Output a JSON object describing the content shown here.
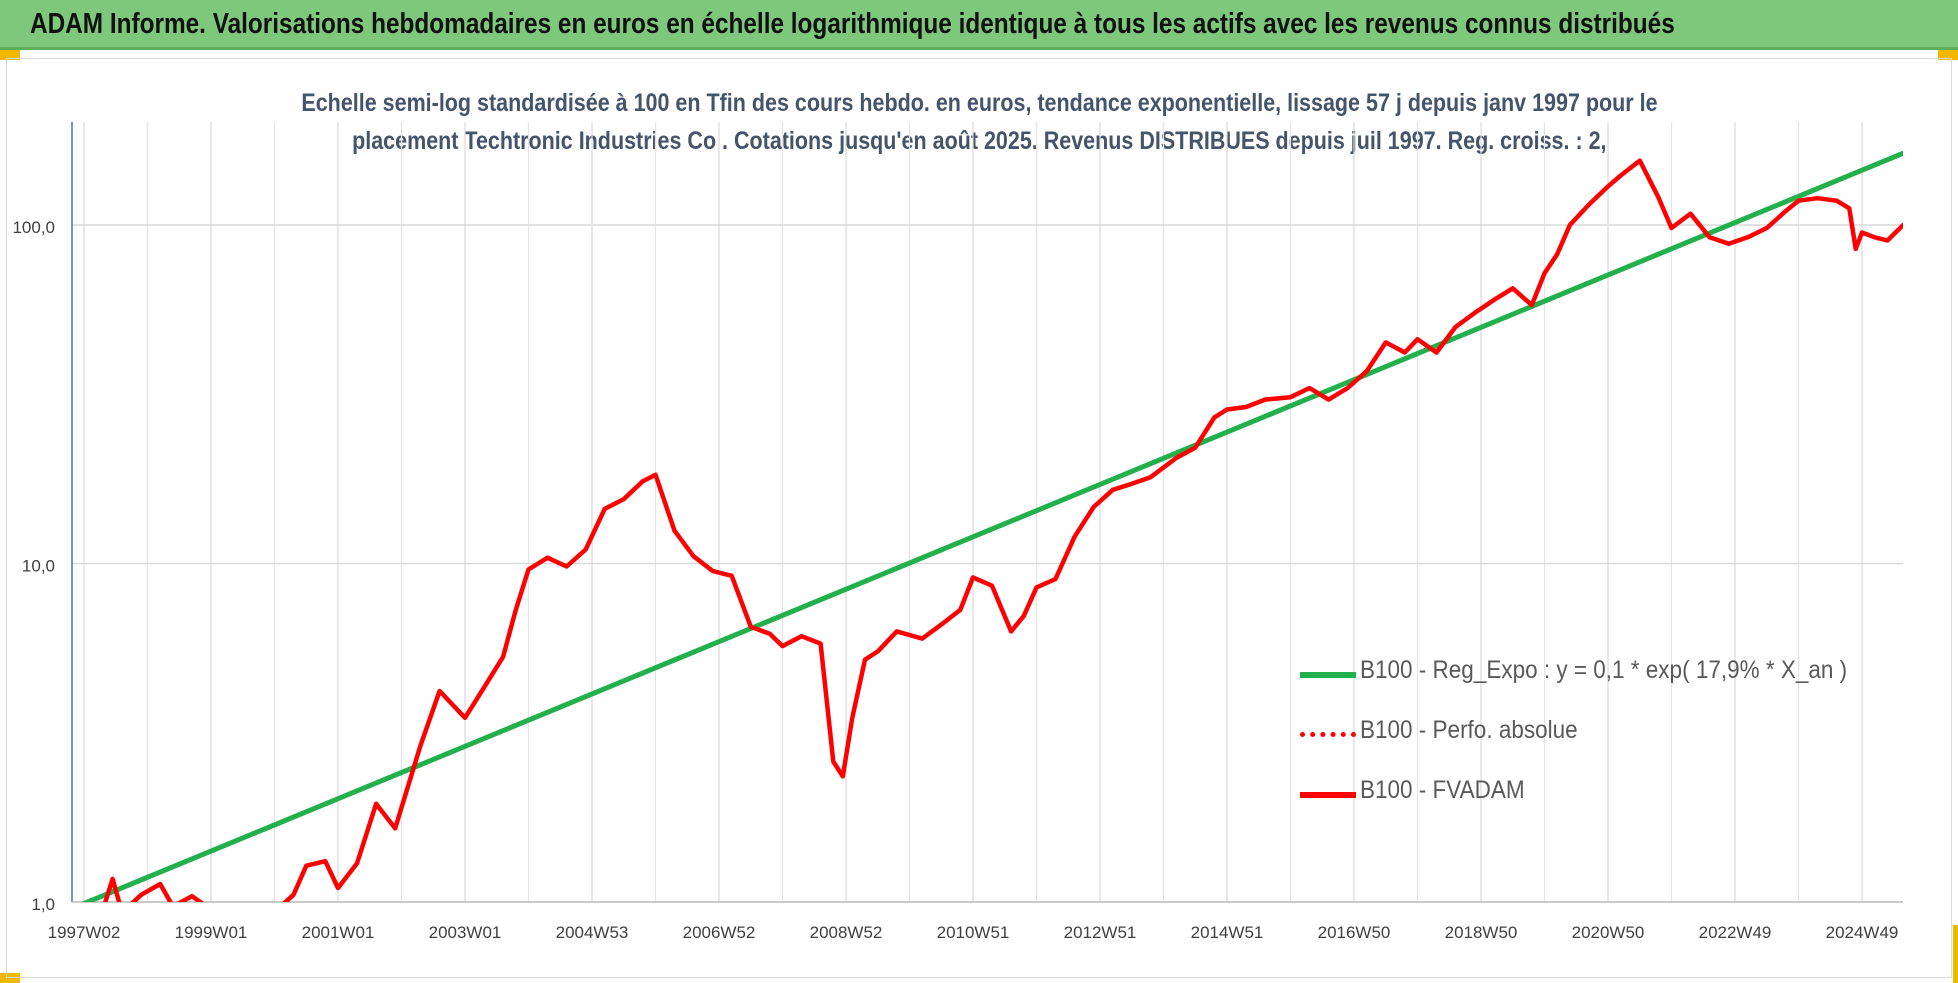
{
  "banner": {
    "title": "ADAM Informe. Valorisations hebdomadaires en euros en échelle logarithmique identique à tous les actifs avec les revenus connus distribués"
  },
  "subtitle": {
    "line1": "Echelle semi-log standardisée à 100 en Tfin des cours hebdo. en euros, tendance exponentielle, lissage 57 j depuis janv 1997 pour le",
    "line2": "placement Techtronic Industries Co . Cotations jusqu'en août 2025. Revenus DISTRIBUES depuis juil 1997. Reg. croiss. : 2,"
  },
  "colors": {
    "banner": "#7dc87a",
    "accent_corner": "#f2b800",
    "trend": "#21b04b",
    "fvadam": "#ff0000",
    "perfo": "#ff0000",
    "subtitle": "#44546a",
    "axis_line": "#4472c4"
  },
  "chart_data": {
    "type": "line",
    "y_scale": "log",
    "ylim": [
      1,
      180
    ],
    "y_ticks": [
      {
        "value": 1,
        "label": "1,0"
      },
      {
        "value": 10,
        "label": "10,0"
      },
      {
        "value": 100,
        "label": "100,0"
      }
    ],
    "x_start": 1997.0,
    "x_end": 2025.65,
    "x_ticks": [
      {
        "value": 1997.0,
        "label": "1997W02"
      },
      {
        "value": 1999.0,
        "label": "1999W01"
      },
      {
        "value": 2001.0,
        "label": "2001W01"
      },
      {
        "value": 2003.0,
        "label": "2003W01"
      },
      {
        "value": 2005.0,
        "label": "2004W53"
      },
      {
        "value": 2007.0,
        "label": "2006W52"
      },
      {
        "value": 2009.0,
        "label": "2008W52"
      },
      {
        "value": 2011.0,
        "label": "2010W51"
      },
      {
        "value": 2013.0,
        "label": "2012W51"
      },
      {
        "value": 2015.0,
        "label": "2014W51"
      },
      {
        "value": 2017.0,
        "label": "2016W50"
      },
      {
        "value": 2019.0,
        "label": "2018W50"
      },
      {
        "value": 2021.0,
        "label": "2020W50"
      },
      {
        "value": 2023.0,
        "label": "2022W49"
      },
      {
        "value": 2025.0,
        "label": "2024W49"
      }
    ],
    "series": [
      {
        "name": "B100 - Reg_Expo : y = 0,1 * exp( 17,9% *  X_an )",
        "style": "solid-green",
        "x": [
          1997.0,
          2025.65
        ],
        "y": [
          0.99,
          163
        ]
      },
      {
        "name": "B100 - Perfo. absolue",
        "style": "dotted-red",
        "x": [],
        "y": []
      },
      {
        "name": "B100 - FVADAM",
        "style": "solid-red",
        "x": [
          1997.0,
          1997.3,
          1997.45,
          1997.6,
          1997.9,
          1998.2,
          1998.4,
          1998.7,
          1999.0,
          1999.5,
          1999.9,
          2000.3,
          2000.5,
          2000.8,
          2001.0,
          2001.3,
          2001.6,
          2001.9,
          2002.0,
          2002.3,
          2002.6,
          2003.0,
          2003.3,
          2003.6,
          2003.8,
          2004.0,
          2004.3,
          2004.6,
          2004.9,
          2005.2,
          2005.5,
          2005.8,
          2006.0,
          2006.3,
          2006.6,
          2006.9,
          2007.2,
          2007.5,
          2007.8,
          2008.0,
          2008.3,
          2008.6,
          2008.8,
          2008.95,
          2009.1,
          2009.3,
          2009.5,
          2009.8,
          2010.2,
          2010.5,
          2010.8,
          2011.0,
          2011.3,
          2011.6,
          2011.8,
          2012.0,
          2012.3,
          2012.6,
          2012.9,
          2013.2,
          2013.5,
          2013.8,
          2014.2,
          2014.5,
          2014.8,
          2015.0,
          2015.3,
          2015.6,
          2016.0,
          2016.3,
          2016.6,
          2016.9,
          2017.2,
          2017.5,
          2017.8,
          2018.0,
          2018.3,
          2018.6,
          2018.9,
          2019.2,
          2019.5,
          2019.8,
          2020.0,
          2020.2,
          2020.4,
          2020.7,
          2021.0,
          2021.2,
          2021.5,
          2021.8,
          2022.0,
          2022.3,
          2022.6,
          2022.9,
          2023.2,
          2023.5,
          2023.8,
          2024.0,
          2024.3,
          2024.6,
          2024.8,
          2024.9,
          2025.0,
          2025.2,
          2025.4,
          2025.65
        ],
        "y": [
          0.98,
          0.95,
          1.17,
          0.93,
          1.05,
          1.13,
          0.97,
          1.04,
          0.95,
          0.85,
          0.9,
          1.05,
          1.28,
          1.32,
          1.1,
          1.3,
          1.95,
          1.65,
          1.9,
          2.9,
          4.2,
          3.5,
          4.3,
          5.3,
          7.3,
          9.6,
          10.4,
          9.8,
          11.0,
          14.5,
          15.5,
          17.5,
          18.3,
          12.5,
          10.5,
          9.5,
          9.2,
          6.5,
          6.2,
          5.7,
          6.1,
          5.8,
          2.6,
          2.35,
          3.5,
          5.2,
          5.5,
          6.3,
          6.0,
          6.6,
          7.3,
          9.1,
          8.6,
          6.3,
          7.0,
          8.5,
          9.0,
          12.0,
          14.7,
          16.5,
          17.2,
          18.0,
          20.5,
          22.0,
          27.0,
          28.5,
          29.0,
          30.5,
          31.0,
          33.0,
          30.5,
          33.0,
          37.0,
          45.0,
          42.0,
          46.0,
          42.0,
          50.0,
          55.0,
          60.0,
          65.0,
          58.0,
          72.0,
          82.0,
          100.0,
          115.0,
          130.0,
          140.0,
          155.0,
          120.0,
          98.0,
          108.0,
          92.0,
          88.0,
          92.0,
          98.0,
          110.0,
          118.0,
          120.0,
          118.0,
          112.0,
          85.0,
          95.0,
          92.0,
          90.0,
          100.0
        ]
      }
    ]
  },
  "legend": [
    {
      "label": "B100 - Reg_Expo : y = 0,1 * exp( 17,9% *  X_an )",
      "style": "solid-green"
    },
    {
      "label": "B100 - Perfo. absolue",
      "style": "dotted-red"
    },
    {
      "label": "B100 - FVADAM",
      "style": "solid-red"
    }
  ]
}
